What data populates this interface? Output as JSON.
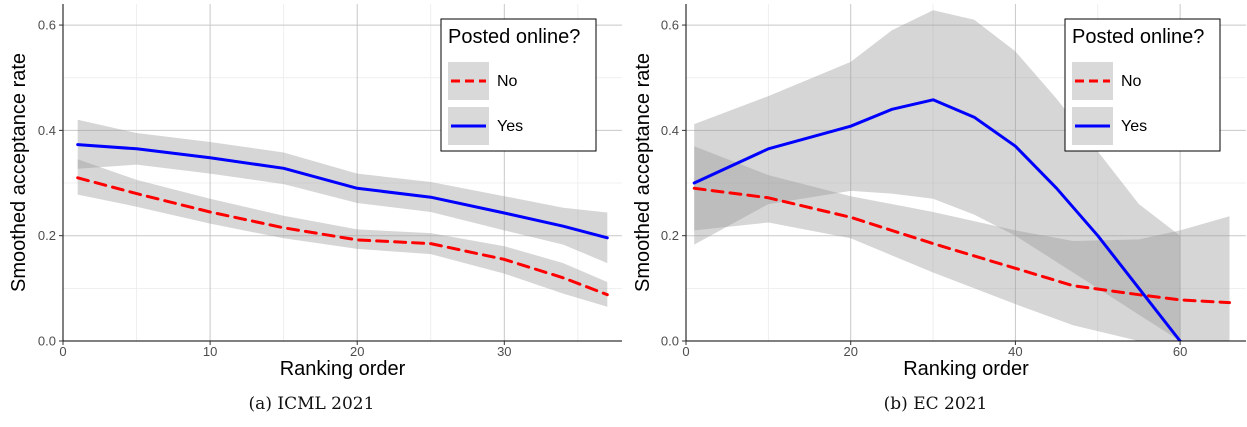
{
  "chart_data": [
    {
      "type": "line",
      "caption": "(a) ICML 2021",
      "xlabel": "Ranking order",
      "ylabel": "Smoothed acceptance rate",
      "xlim": [
        0,
        38
      ],
      "ylim": [
        0,
        0.64
      ],
      "xticks": [
        0,
        10,
        20,
        30
      ],
      "yticks": [
        0.0,
        0.2,
        0.4,
        0.6
      ],
      "xtick_labels": [
        "0",
        "10",
        "20",
        "30"
      ],
      "ytick_labels": [
        "0.0",
        "0.2",
        "0.4",
        "0.6"
      ],
      "grid": true,
      "legend": {
        "title": "Posted online?",
        "position": "top-right"
      },
      "series": [
        {
          "name": "No",
          "color": "#ff0000",
          "dash": "dashed",
          "x": [
            1,
            5,
            10,
            15,
            20,
            25,
            30,
            34,
            37
          ],
          "y": [
            0.31,
            0.28,
            0.245,
            0.215,
            0.192,
            0.185,
            0.155,
            0.12,
            0.088
          ],
          "ci_low": [
            0.278,
            0.255,
            0.223,
            0.195,
            0.175,
            0.165,
            0.128,
            0.09,
            0.065
          ],
          "ci_high": [
            0.345,
            0.306,
            0.27,
            0.238,
            0.212,
            0.205,
            0.18,
            0.148,
            0.112
          ]
        },
        {
          "name": "Yes",
          "color": "#0000ff",
          "dash": "solid",
          "x": [
            1,
            5,
            10,
            15,
            20,
            25,
            30,
            34,
            37
          ],
          "y": [
            0.373,
            0.365,
            0.348,
            0.328,
            0.29,
            0.273,
            0.243,
            0.218,
            0.196
          ],
          "ci_low": [
            0.327,
            0.335,
            0.318,
            0.298,
            0.262,
            0.245,
            0.21,
            0.183,
            0.148
          ],
          "ci_high": [
            0.42,
            0.395,
            0.378,
            0.358,
            0.318,
            0.302,
            0.275,
            0.253,
            0.244
          ]
        }
      ]
    },
    {
      "type": "line",
      "caption": "(b) EC 2021",
      "xlabel": "Ranking order",
      "ylabel": "Smoothed acceptance rate",
      "xlim": [
        0,
        68
      ],
      "ylim": [
        0,
        0.64
      ],
      "xticks": [
        0,
        20,
        40,
        60
      ],
      "yticks": [
        0.0,
        0.2,
        0.4,
        0.6
      ],
      "xtick_labels": [
        "0",
        "20",
        "40",
        "60"
      ],
      "ytick_labels": [
        "0.0",
        "0.2",
        "0.4",
        "0.6"
      ],
      "grid": true,
      "legend": {
        "title": "Posted online?",
        "position": "top-right"
      },
      "series": [
        {
          "name": "No",
          "color": "#ff0000",
          "dash": "dashed",
          "x": [
            1,
            10,
            20,
            30,
            40,
            47,
            55,
            60,
            66
          ],
          "y": [
            0.29,
            0.272,
            0.235,
            0.185,
            0.138,
            0.105,
            0.088,
            0.078,
            0.073
          ],
          "ci_low": [
            0.21,
            0.225,
            0.195,
            0.13,
            0.07,
            0.03,
            0.0,
            0.0,
            0.0
          ],
          "ci_high": [
            0.37,
            0.315,
            0.275,
            0.245,
            0.21,
            0.19,
            0.193,
            0.21,
            0.237
          ]
        },
        {
          "name": "Yes",
          "color": "#0000ff",
          "dash": "solid",
          "x": [
            1,
            10,
            20,
            25,
            30,
            35,
            40,
            45,
            50,
            55,
            60
          ],
          "y": [
            0.3,
            0.365,
            0.408,
            0.44,
            0.458,
            0.425,
            0.37,
            0.29,
            0.2,
            0.1,
            0.0
          ],
          "ci_low": [
            0.183,
            0.26,
            0.285,
            0.28,
            0.27,
            0.24,
            0.2,
            0.15,
            0.1,
            0.05,
            0.0
          ],
          "ci_high": [
            0.412,
            0.465,
            0.53,
            0.59,
            0.628,
            0.61,
            0.55,
            0.46,
            0.36,
            0.26,
            0.2
          ]
        }
      ]
    }
  ]
}
